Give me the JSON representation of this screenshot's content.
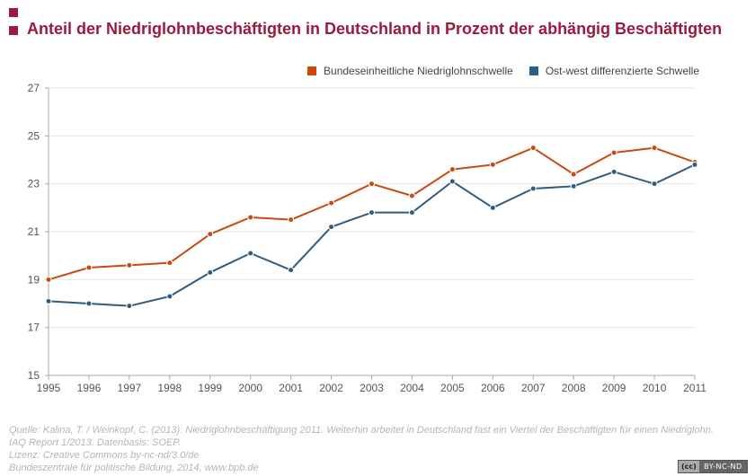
{
  "header": {
    "title": "Anteil der Niedriglohnbeschäftigten in Deutschland in Prozent der abhängig Beschäftigten"
  },
  "legend": [
    {
      "label": "Bundeseinheitliche Niedriglohnschwelle",
      "color": "#c9490f"
    },
    {
      "label": "Ost-west differenzierte Schwelle",
      "color": "#2f5d82"
    }
  ],
  "footer": {
    "lines": [
      "Quelle: Kalina, T. / Weinkopf, C. (2013): Niedriglohnbeschäftigung 2011. Weiterhin arbeitet in Deutschland fast ein Viertel der Beschäftigten für einen Niedriglohn.",
      "IAQ Report 1/2013. Datenbasis: SOEP.",
      "Lizenz: Creative Commons by-nc-nd/3.0/de",
      "Bundeszentrale für politische Bildung, 2014, www.bpb.de"
    ],
    "license_badge_left": "(cc)",
    "license_badge_right": "BY-NC-ND"
  },
  "chart_data": {
    "type": "line",
    "title": "Anteil der Niedriglohnbeschäftigten in Deutschland in Prozent der abhängig Beschäftigten",
    "xlabel": "",
    "ylabel": "",
    "x": [
      1995,
      1996,
      1997,
      1998,
      1999,
      2000,
      2001,
      2002,
      2003,
      2004,
      2005,
      2006,
      2007,
      2008,
      2009,
      2010,
      2011
    ],
    "ylim": [
      15,
      27
    ],
    "yticks": [
      15,
      17,
      19,
      21,
      23,
      25,
      27
    ],
    "grid": true,
    "legend_position": "top-right",
    "series": [
      {
        "name": "Bundeseinheitliche Niedriglohnschwelle",
        "color": "#c9490f",
        "values": [
          19.0,
          19.5,
          19.6,
          19.7,
          20.9,
          21.6,
          21.5,
          22.2,
          23.0,
          22.5,
          23.6,
          23.8,
          24.5,
          23.4,
          24.3,
          24.5,
          23.9
        ]
      },
      {
        "name": "Ost-west differenzierte Schwelle",
        "color": "#2f5d82",
        "values": [
          18.1,
          18.0,
          17.9,
          18.3,
          19.3,
          20.1,
          19.4,
          21.2,
          21.8,
          21.8,
          23.1,
          22.0,
          22.8,
          22.9,
          23.5,
          23.0,
          23.8
        ]
      }
    ]
  }
}
